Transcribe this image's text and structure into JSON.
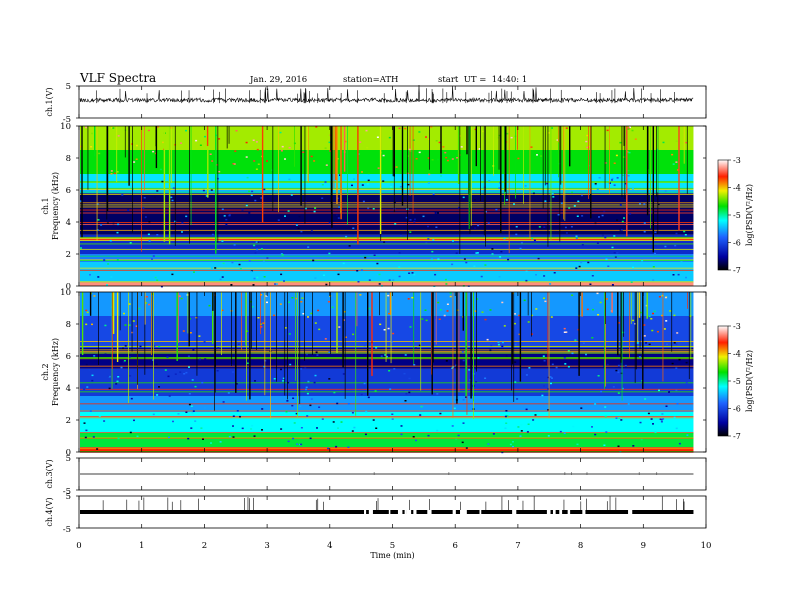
{
  "header": {
    "title": "VLF Spectra",
    "date": "Jan. 29, 2016",
    "station": "station=ATH",
    "start": "start  UT =  14:40: 1"
  },
  "chart_data": [
    {
      "type": "line",
      "panel": "ch1-waveform",
      "ylabel": "ch.1(V)",
      "ylim": [
        -5,
        5
      ],
      "yticks": [
        "5",
        "-5"
      ],
      "baseline_v": 0.6,
      "color": "#000000"
    },
    {
      "type": "heatmap",
      "panel": "ch1-spectrogram",
      "ylabel": "ch.1\nFrequency (kHz)",
      "ylabel_line1": "ch.1",
      "ylabel_line2": "Frequency (kHz)",
      "ylim": [
        0,
        10
      ],
      "yticks": [
        "0",
        "2",
        "4",
        "6",
        "8",
        "10"
      ],
      "colorbar": {
        "label": "log(PSD(V²/Hz)",
        "range": [
          -7,
          -3
        ],
        "ticks": [
          "-3",
          "-4",
          "-5",
          "-6",
          "-7"
        ]
      },
      "bands_khz": [
        {
          "from": 0,
          "to": 0.3,
          "level": -3.3
        },
        {
          "from": 0.3,
          "to": 1.5,
          "level": -5.4
        },
        {
          "from": 1.5,
          "to": 2.0,
          "level": -5.7
        },
        {
          "from": 2.0,
          "to": 3.2,
          "level": -6.2
        },
        {
          "from": 3.2,
          "to": 5.8,
          "level": -6.7
        },
        {
          "from": 5.8,
          "to": 6.1,
          "level": -5.5
        },
        {
          "from": 6.1,
          "to": 7.0,
          "level": -5.3
        },
        {
          "from": 7.0,
          "to": 8.5,
          "level": -4.7
        },
        {
          "from": 8.5,
          "to": 10.0,
          "level": -4.3
        }
      ]
    },
    {
      "type": "heatmap",
      "panel": "ch2-spectrogram",
      "ylabel_line1": "ch.2",
      "ylabel_line2": "Frequency (kHz)",
      "ylim": [
        0,
        10
      ],
      "yticks": [
        "0",
        "2",
        "4",
        "6",
        "8",
        "10"
      ],
      "colorbar": {
        "label": "log(PSD(V²/Hz)",
        "range": [
          -7,
          -3
        ],
        "ticks": [
          "-3",
          "-4",
          "-5",
          "-6",
          "-7"
        ]
      },
      "bands_khz": [
        {
          "from": 0,
          "to": 0.3,
          "level": -3.6
        },
        {
          "from": 0.3,
          "to": 1.2,
          "level": -4.8
        },
        {
          "from": 1.2,
          "to": 2.5,
          "level": -5.2
        },
        {
          "from": 2.5,
          "to": 3.5,
          "level": -5.6
        },
        {
          "from": 3.5,
          "to": 5.2,
          "level": -6.1
        },
        {
          "from": 5.2,
          "to": 6.5,
          "level": -6.6
        },
        {
          "from": 6.5,
          "to": 8.5,
          "level": -6.0
        },
        {
          "from": 8.5,
          "to": 10.0,
          "level": -5.6
        }
      ]
    },
    {
      "type": "line",
      "panel": "ch3-waveform",
      "ylabel": "ch.3(V)",
      "ylim": [
        -5,
        5
      ],
      "yticks": [
        "5",
        "-5"
      ],
      "baseline_v": 0.0,
      "color": "#666666"
    },
    {
      "type": "line",
      "panel": "ch4-waveform",
      "ylabel": "ch.4(V)",
      "ylim": [
        -5,
        5
      ],
      "yticks": [
        "5",
        "-5"
      ],
      "baseline_v": 0.0,
      "color": "#000000"
    }
  ],
  "xaxis": {
    "label": "Time (min)",
    "range": [
      0,
      10
    ],
    "ticks": [
      "0",
      "1",
      "2",
      "3",
      "4",
      "5",
      "6",
      "7",
      "8",
      "9",
      "10"
    ],
    "data_end_min": 9.8
  }
}
